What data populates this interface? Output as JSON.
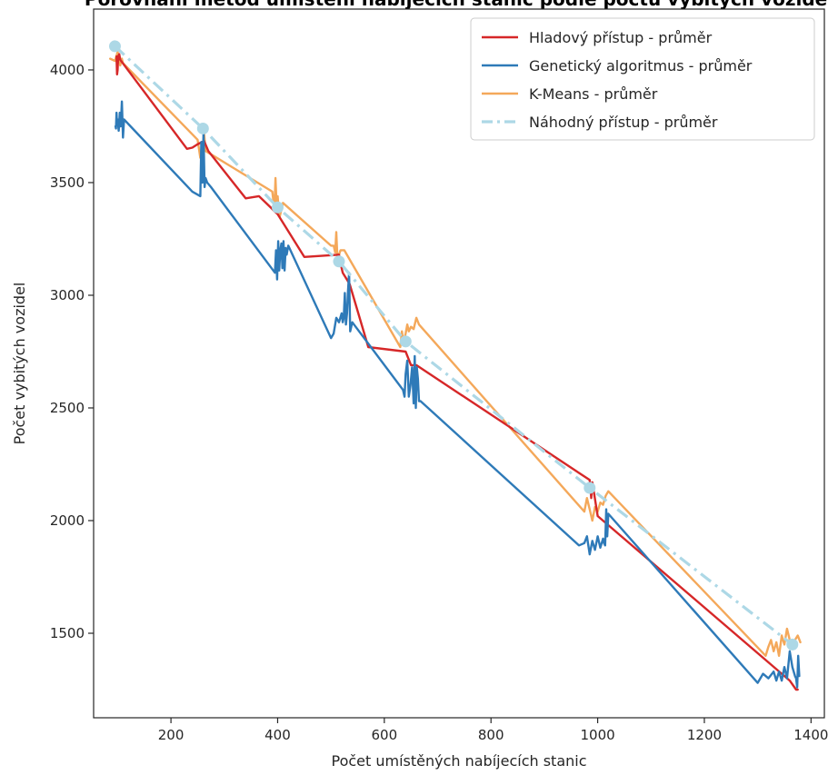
{
  "chart_data": {
    "type": "line",
    "title": "Porovnání metod umístění nabíjecích stanic podle počtu vybitých vozidel",
    "xlabel": "Počet umístěných nabíjecích stanic",
    "ylabel": "Počet vybitých vozidel",
    "xlim": [
      55,
      1425
    ],
    "ylim": [
      1125,
      4270
    ],
    "xticks": [
      200,
      400,
      600,
      800,
      1000,
      1200,
      1400
    ],
    "yticks": [
      1500,
      2000,
      2500,
      3000,
      3500,
      4000
    ],
    "grid": false,
    "legend_position": "top-right",
    "series": [
      {
        "name": "Hladový přístup - průměr",
        "color": "#d62728",
        "style": "solid",
        "x": [
          98,
          99,
          100,
          101,
          103,
          105,
          230,
          240,
          250,
          258,
          260,
          262,
          270,
          340,
          365,
          400,
          450,
          515,
          520,
          522,
          535,
          570,
          640,
          650,
          660,
          985,
          988,
          990,
          1000,
          1360,
          1372,
          1375
        ],
        "y": [
          4060,
          3980,
          4000,
          4060,
          4070,
          4045,
          3650,
          3655,
          3670,
          3680,
          3670,
          3685,
          3640,
          3430,
          3440,
          3360,
          3170,
          3180,
          3120,
          3100,
          3050,
          2770,
          2750,
          2690,
          2690,
          2180,
          2100,
          2170,
          2020,
          1290,
          1250,
          1250
        ]
      },
      {
        "name": "Genetický algoritmus - průměr",
        "color": "#2e7ab8",
        "style": "solid",
        "x": [
          96,
          97,
          98,
          99,
          100,
          102,
          104,
          106,
          108,
          110,
          112,
          240,
          255,
          257,
          259,
          261,
          263,
          265,
          268,
          275,
          395,
          397,
          399,
          401,
          403,
          405,
          407,
          409,
          411,
          413,
          415,
          417,
          420,
          500,
          505,
          510,
          515,
          520,
          522,
          524,
          526,
          528,
          530,
          532,
          534,
          536,
          540,
          635,
          638,
          640,
          643,
          646,
          649,
          652,
          655,
          657,
          659,
          661,
          663,
          665,
          668,
          965,
          975,
          980,
          985,
          990,
          995,
          1000,
          1005,
          1010,
          1012,
          1014,
          1016,
          1018,
          1020,
          1300,
          1310,
          1320,
          1330,
          1335,
          1340,
          1345,
          1350,
          1355,
          1360,
          1365,
          1370,
          1372,
          1374,
          1376,
          1378
        ],
        "y": [
          3750,
          3740,
          3810,
          3760,
          3780,
          3730,
          3810,
          3750,
          3860,
          3700,
          3780,
          3460,
          3440,
          3680,
          3500,
          3720,
          3480,
          3520,
          3500,
          3480,
          3100,
          3200,
          3070,
          3240,
          3110,
          3200,
          3230,
          3120,
          3240,
          3110,
          3210,
          3180,
          3220,
          2810,
          2830,
          2900,
          2880,
          2920,
          2880,
          2900,
          3010,
          2870,
          2920,
          3020,
          3100,
          2840,
          2880,
          2580,
          2550,
          2650,
          2710,
          2550,
          2600,
          2680,
          2520,
          2730,
          2500,
          2680,
          2630,
          2530,
          2530,
          1890,
          1900,
          1930,
          1850,
          1910,
          1870,
          1930,
          1880,
          1920,
          1900,
          1890,
          2050,
          1930,
          2030,
          1280,
          1320,
          1300,
          1330,
          1290,
          1330,
          1290,
          1350,
          1300,
          1420,
          1350,
          1310,
          1300,
          1260,
          1400,
          1310
        ]
      },
      {
        "name": "K-Means - průměr",
        "color": "#f4a85a",
        "style": "solid",
        "x": [
          86,
          95,
          100,
          105,
          108,
          110,
          250,
          255,
          258,
          260,
          262,
          265,
          390,
          394,
          396,
          398,
          400,
          402,
          404,
          410,
          500,
          505,
          508,
          510,
          512,
          515,
          518,
          525,
          630,
          633,
          636,
          640,
          643,
          646,
          650,
          655,
          660,
          665,
          975,
          980,
          985,
          990,
          995,
          1000,
          1005,
          1010,
          1015,
          1020,
          1315,
          1320,
          1325,
          1330,
          1335,
          1340,
          1345,
          1350,
          1355,
          1360,
          1365,
          1370,
          1375,
          1380
        ],
        "y": [
          4050,
          4040,
          4080,
          4020,
          4050,
          4030,
          3690,
          3610,
          3650,
          3630,
          3720,
          3640,
          3460,
          3380,
          3520,
          3400,
          3440,
          3380,
          3350,
          3410,
          3220,
          3220,
          3190,
          3280,
          3170,
          3180,
          3200,
          3200,
          2770,
          2840,
          2790,
          2830,
          2870,
          2840,
          2860,
          2850,
          2900,
          2870,
          2040,
          2100,
          2050,
          2000,
          2060,
          2040,
          2080,
          2070,
          2110,
          2130,
          1400,
          1440,
          1470,
          1420,
          1460,
          1400,
          1490,
          1450,
          1520,
          1470,
          1460,
          1470,
          1490,
          1460
        ]
      },
      {
        "name": "Náhodný přístup - průměr",
        "color": "#add8e6",
        "style": "dashdot",
        "markers": true,
        "x": [
          95,
          260,
          400,
          515,
          640,
          985,
          1365
        ],
        "y": [
          4105,
          3740,
          3390,
          3150,
          2795,
          2145,
          1450
        ]
      }
    ]
  }
}
